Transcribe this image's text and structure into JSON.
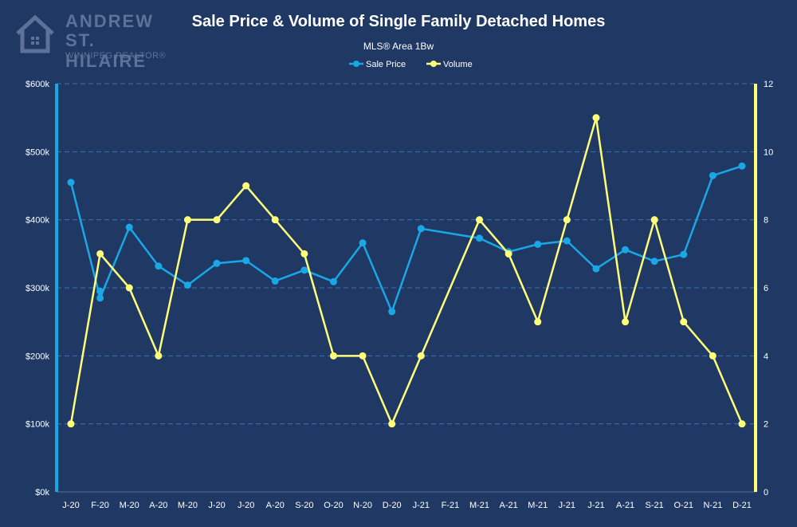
{
  "logo": {
    "line1": "ANDREW",
    "line2": "ST. HILAIRE",
    "line3": "WINNIPEG REALTOR®"
  },
  "chart_data": {
    "type": "line",
    "title": "Sale Price & Volume of Single Family Detached Homes",
    "subtitle": "MLS® Area 1Bw",
    "legend_position": "top-center",
    "grid": true,
    "categories": [
      "J-20",
      "F-20",
      "M-20",
      "A-20",
      "M-20",
      "J-20",
      "J-20",
      "A-20",
      "S-20",
      "O-20",
      "N-20",
      "D-20",
      "J-21",
      "F-21",
      "M-21",
      "A-21",
      "M-21",
      "J-21",
      "J-21",
      "A-21",
      "S-21",
      "O-21",
      "N-21",
      "D-21"
    ],
    "left_axis": {
      "ylim": [
        0,
        600000
      ],
      "ticks": [
        "$0k",
        "$100k",
        "$200k",
        "$300k",
        "$400k",
        "$500k",
        "$600k"
      ]
    },
    "right_axis": {
      "ylim": [
        0,
        12
      ],
      "ticks": [
        "0",
        "2",
        "4",
        "6",
        "8",
        "10",
        "12"
      ]
    },
    "series": [
      {
        "name": "Sale Price",
        "axis": "left",
        "color": "#1aa7e6",
        "values": [
          455000,
          285000,
          389000,
          332000,
          304000,
          336000,
          340000,
          310000,
          326000,
          309000,
          366000,
          265000,
          387000,
          null,
          373000,
          353000,
          364000,
          369000,
          328000,
          356000,
          339000,
          349000,
          465000,
          479000
        ],
        "extra_points": [
          {
            "index": 1,
            "value": 295000
          }
        ]
      },
      {
        "name": "Volume",
        "axis": "right",
        "color": "#ffff7a",
        "values": [
          2,
          7,
          6,
          4,
          8,
          8,
          9,
          8,
          7,
          4,
          4,
          2,
          4,
          null,
          8,
          7,
          5,
          8,
          11,
          5,
          8,
          5,
          4,
          2
        ]
      }
    ]
  },
  "colors": {
    "background": "#1f3864",
    "grid": "#3a73b8",
    "axis_text": "#ffffff",
    "left_axis_line": "#1aa7e6",
    "right_axis_line": "#ffff7a"
  }
}
